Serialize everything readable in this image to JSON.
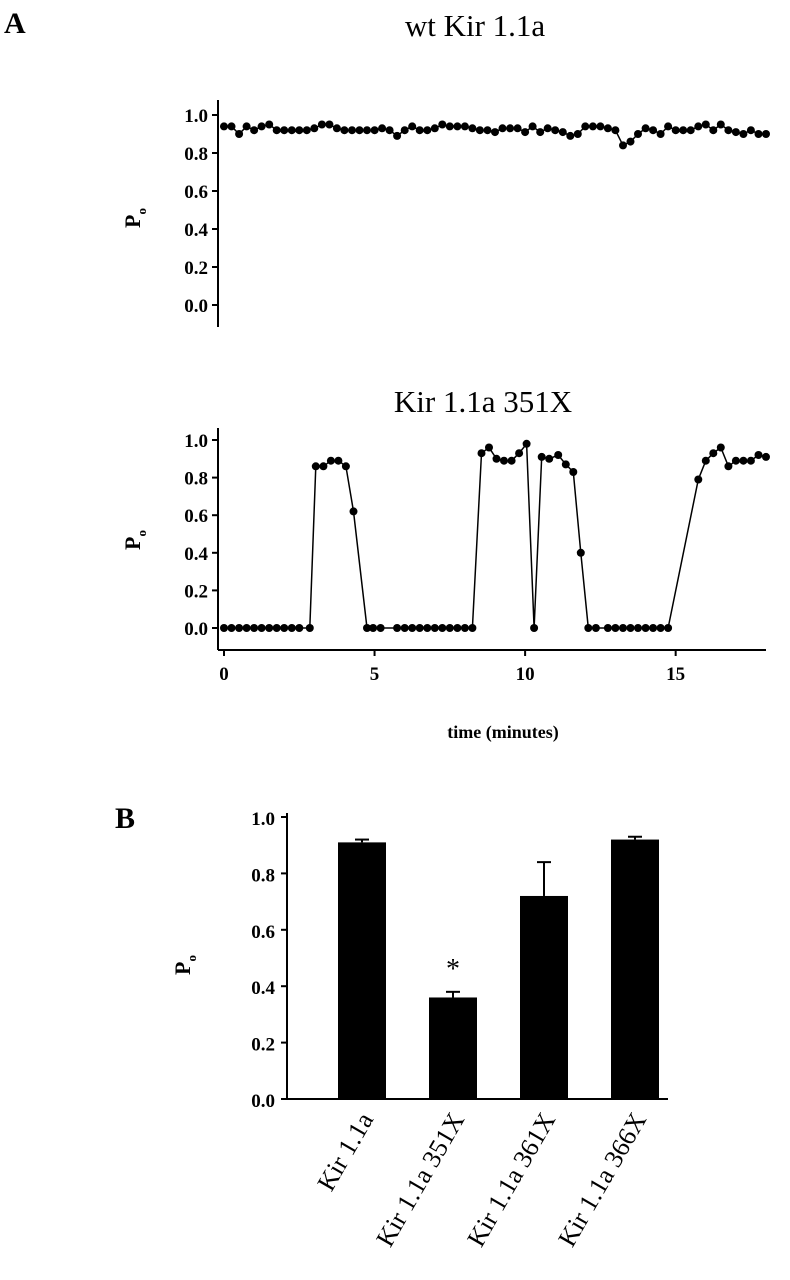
{
  "figure": {
    "panel_a_letter": "A",
    "panel_b_letter": "B"
  },
  "chart_data": [
    {
      "id": "wt",
      "type": "line",
      "title": "wt Kir 1.1a",
      "ylabel": "P",
      "ylabel_sub": "o",
      "ylim": [
        0,
        1
      ],
      "yticks": [
        "0.0",
        "0.2",
        "0.4",
        "0.6",
        "0.8",
        "1.0"
      ],
      "xlim": [
        0,
        18
      ],
      "grid": false,
      "x": [
        0.0,
        0.25,
        0.5,
        0.75,
        1.0,
        1.25,
        1.5,
        1.75,
        2.0,
        2.25,
        2.5,
        2.75,
        3.0,
        3.25,
        3.5,
        3.75,
        4.0,
        4.25,
        4.5,
        4.75,
        5.0,
        5.25,
        5.5,
        5.75,
        6.0,
        6.25,
        6.5,
        6.75,
        7.0,
        7.25,
        7.5,
        7.75,
        8.0,
        8.25,
        8.5,
        8.75,
        9.0,
        9.25,
        9.5,
        9.75,
        10.0,
        10.25,
        10.5,
        10.75,
        11.0,
        11.25,
        11.5,
        11.75,
        12.0,
        12.25,
        12.5,
        12.75,
        13.0,
        13.25,
        13.5,
        13.75,
        14.0,
        14.25,
        14.5,
        14.75,
        15.0,
        15.25,
        15.5,
        15.75,
        16.0,
        16.25,
        16.5,
        16.75,
        17.0,
        17.25,
        17.5,
        17.75,
        18.0
      ],
      "values": [
        0.94,
        0.94,
        0.9,
        0.94,
        0.92,
        0.94,
        0.95,
        0.92,
        0.92,
        0.92,
        0.92,
        0.92,
        0.93,
        0.95,
        0.95,
        0.93,
        0.92,
        0.92,
        0.92,
        0.92,
        0.92,
        0.93,
        0.92,
        0.89,
        0.92,
        0.94,
        0.92,
        0.92,
        0.93,
        0.95,
        0.94,
        0.94,
        0.94,
        0.93,
        0.92,
        0.92,
        0.91,
        0.93,
        0.93,
        0.93,
        0.91,
        0.94,
        0.91,
        0.93,
        0.92,
        0.91,
        0.89,
        0.9,
        0.94,
        0.94,
        0.94,
        0.93,
        0.92,
        0.84,
        0.86,
        0.9,
        0.93,
        0.92,
        0.9,
        0.94,
        0.92,
        0.92,
        0.92,
        0.94,
        0.95,
        0.92,
        0.95,
        0.92,
        0.91,
        0.9,
        0.92,
        0.9,
        0.9
      ]
    },
    {
      "id": "mut351",
      "type": "line",
      "title": "Kir 1.1a 351X",
      "ylabel": "P",
      "ylabel_sub": "o",
      "xlabel": "time (minutes)",
      "ylim": [
        0,
        1
      ],
      "yticks": [
        "0.0",
        "0.2",
        "0.4",
        "0.6",
        "0.8",
        "1.0"
      ],
      "xlim": [
        0,
        18
      ],
      "xticks": [
        "0",
        "5",
        "10",
        "15"
      ],
      "grid": false,
      "x": [
        0.0,
        0.25,
        0.5,
        0.75,
        1.0,
        1.25,
        1.5,
        1.75,
        2.0,
        2.25,
        2.5,
        2.85,
        3.05,
        3.3,
        3.55,
        3.8,
        4.05,
        4.3,
        4.75,
        4.95,
        5.2,
        5.75,
        6.0,
        6.25,
        6.5,
        6.75,
        7.0,
        7.25,
        7.5,
        7.75,
        8.0,
        8.25,
        8.55,
        8.8,
        9.05,
        9.3,
        9.55,
        9.8,
        10.05,
        10.3,
        10.55,
        10.8,
        11.1,
        11.35,
        11.6,
        11.85,
        12.1,
        12.35,
        12.75,
        13.0,
        13.25,
        13.5,
        13.75,
        14.0,
        14.25,
        14.5,
        14.75,
        15.75,
        16.0,
        16.25,
        16.5,
        16.75,
        17.0,
        17.25,
        17.5,
        17.75,
        18.0
      ],
      "values": [
        0.0,
        0.0,
        0.0,
        0.0,
        0.0,
        0.0,
        0.0,
        0.0,
        0.0,
        0.0,
        0.0,
        0.0,
        0.86,
        0.86,
        0.89,
        0.89,
        0.86,
        0.62,
        0.0,
        0.0,
        0.0,
        0.0,
        0.0,
        0.0,
        0.0,
        0.0,
        0.0,
        0.0,
        0.0,
        0.0,
        0.0,
        0.0,
        0.93,
        0.96,
        0.9,
        0.89,
        0.89,
        0.93,
        0.98,
        0.0,
        0.91,
        0.9,
        0.92,
        0.87,
        0.83,
        0.4,
        0.0,
        0.0,
        0.0,
        0.0,
        0.0,
        0.0,
        0.0,
        0.0,
        0.0,
        0.0,
        0.0,
        0.79,
        0.89,
        0.93,
        0.96,
        0.86,
        0.89,
        0.89,
        0.89,
        0.92,
        0.91
      ]
    },
    {
      "id": "bars",
      "type": "bar",
      "ylabel": "P",
      "ylabel_sub": "o",
      "ylim": [
        0,
        1
      ],
      "yticks": [
        "0.0",
        "0.2",
        "0.4",
        "0.6",
        "0.8",
        "1.0"
      ],
      "grid": false,
      "categories": [
        "Kir 1.1a",
        "Kir 1.1a 351X",
        "Kir 1.1a 361X",
        "Kir 1.1a 366X"
      ],
      "values": [
        0.91,
        0.36,
        0.72,
        0.92
      ],
      "errors": [
        0.01,
        0.02,
        0.12,
        0.01
      ],
      "annotations": [
        "",
        "*",
        "",
        ""
      ]
    }
  ]
}
